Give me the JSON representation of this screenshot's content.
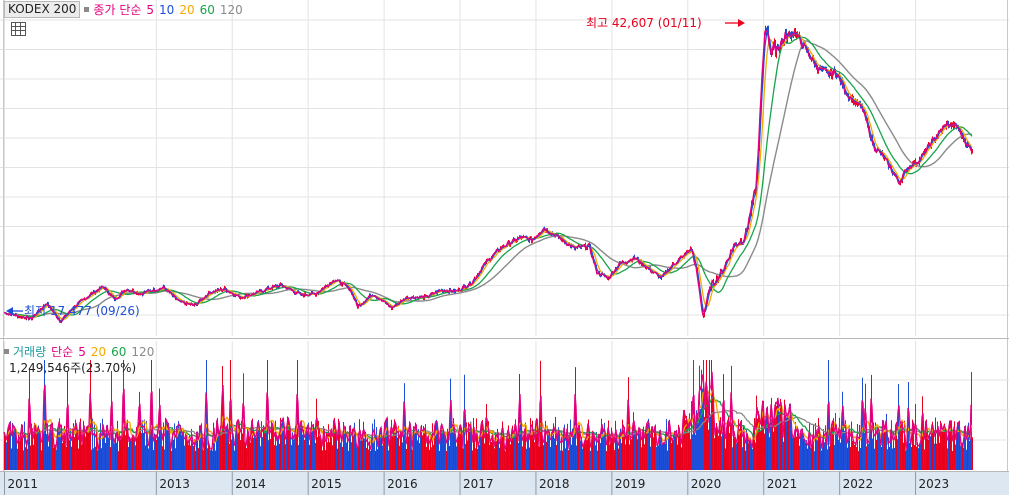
{
  "legend": {
    "symbol": "KODEX 200",
    "ma_label": "종가 단순",
    "periods": [
      "5",
      "10",
      "20",
      "60",
      "120"
    ],
    "colors": [
      "#e4007f",
      "#1d4fd8",
      "#f5a800",
      "#18a34a",
      "#8a8a8a"
    ]
  },
  "volume_legend": {
    "label": "거래량",
    "ma_label": "단순",
    "periods": [
      "5",
      "20",
      "60",
      "120"
    ],
    "colors": [
      "#e4007f",
      "#f5a800",
      "#18a34a",
      "#8a8a8a"
    ],
    "label_color": "#1a9aa0"
  },
  "volume_readout": "1,249,546주(23.70%)",
  "annotations": {
    "high": {
      "text": "최고 42,607 (01/11)",
      "color": "#e8001c"
    },
    "low": {
      "text": "최저 17,477 (09/26)",
      "color": "#1d4fd8"
    }
  },
  "chart_data": {
    "type": "line",
    "x_axis": {
      "start": 2011.0,
      "end": 2023.75,
      "tick_labels": [
        "2011",
        "2013",
        "2014",
        "2015",
        "2016",
        "2017",
        "2018",
        "2019",
        "2020",
        "2021",
        "2022",
        "2023"
      ],
      "tick_years": [
        2011,
        2013,
        2014,
        2015,
        2016,
        2017,
        2018,
        2019,
        2020,
        2021,
        2022,
        2023
      ]
    },
    "ylim": [
      16500,
      44000
    ],
    "grid": true,
    "price_keypoints": [
      [
        2011.0,
        18200
      ],
      [
        2011.35,
        17700
      ],
      [
        2011.55,
        19000
      ],
      [
        2011.74,
        17477
      ],
      [
        2011.9,
        18600
      ],
      [
        2012.1,
        19600
      ],
      [
        2012.3,
        20400
      ],
      [
        2012.45,
        19300
      ],
      [
        2012.6,
        20200
      ],
      [
        2012.8,
        19800
      ],
      [
        2012.95,
        20100
      ],
      [
        2013.1,
        20300
      ],
      [
        2013.3,
        19100
      ],
      [
        2013.5,
        18800
      ],
      [
        2013.7,
        19900
      ],
      [
        2013.9,
        20200
      ],
      [
        2014.1,
        19500
      ],
      [
        2014.3,
        19800
      ],
      [
        2014.5,
        20300
      ],
      [
        2014.65,
        20500
      ],
      [
        2014.9,
        19700
      ],
      [
        2015.1,
        19800
      ],
      [
        2015.35,
        21000
      ],
      [
        2015.55,
        20200
      ],
      [
        2015.65,
        18700
      ],
      [
        2015.85,
        19800
      ],
      [
        2016.1,
        18600
      ],
      [
        2016.3,
        19500
      ],
      [
        2016.55,
        19500
      ],
      [
        2016.75,
        20100
      ],
      [
        2016.95,
        20000
      ],
      [
        2017.15,
        20700
      ],
      [
        2017.35,
        22500
      ],
      [
        2017.55,
        23700
      ],
      [
        2017.8,
        24500
      ],
      [
        2017.95,
        24300
      ],
      [
        2018.1,
        25300
      ],
      [
        2018.3,
        24500
      ],
      [
        2018.5,
        23600
      ],
      [
        2018.7,
        23800
      ],
      [
        2018.8,
        21600
      ],
      [
        2018.95,
        21100
      ],
      [
        2019.1,
        22300
      ],
      [
        2019.3,
        22800
      ],
      [
        2019.5,
        21800
      ],
      [
        2019.65,
        21100
      ],
      [
        2019.8,
        22200
      ],
      [
        2019.95,
        23000
      ],
      [
        2020.05,
        23600
      ],
      [
        2020.12,
        21400
      ],
      [
        2020.2,
        17900
      ],
      [
        2020.3,
        20400
      ],
      [
        2020.45,
        21600
      ],
      [
        2020.6,
        23800
      ],
      [
        2020.75,
        24500
      ],
      [
        2020.9,
        28700
      ],
      [
        2021.02,
        42607
      ],
      [
        2021.1,
        40100
      ],
      [
        2021.25,
        41000
      ],
      [
        2021.4,
        41800
      ],
      [
        2021.55,
        40300
      ],
      [
        2021.7,
        38800
      ],
      [
        2021.85,
        38200
      ],
      [
        2021.95,
        38400
      ],
      [
        2022.1,
        36500
      ],
      [
        2022.3,
        35300
      ],
      [
        2022.45,
        32100
      ],
      [
        2022.55,
        31500
      ],
      [
        2022.7,
        30000
      ],
      [
        2022.78,
        29100
      ],
      [
        2022.9,
        30400
      ],
      [
        2023.05,
        31000
      ],
      [
        2023.2,
        32400
      ],
      [
        2023.4,
        34000
      ],
      [
        2023.55,
        33800
      ],
      [
        2023.65,
        32600
      ],
      [
        2023.72,
        31900
      ]
    ],
    "volume_baseline": 0.38,
    "volume_spike": {
      "x": 2020.2,
      "peak": 3.2
    }
  }
}
